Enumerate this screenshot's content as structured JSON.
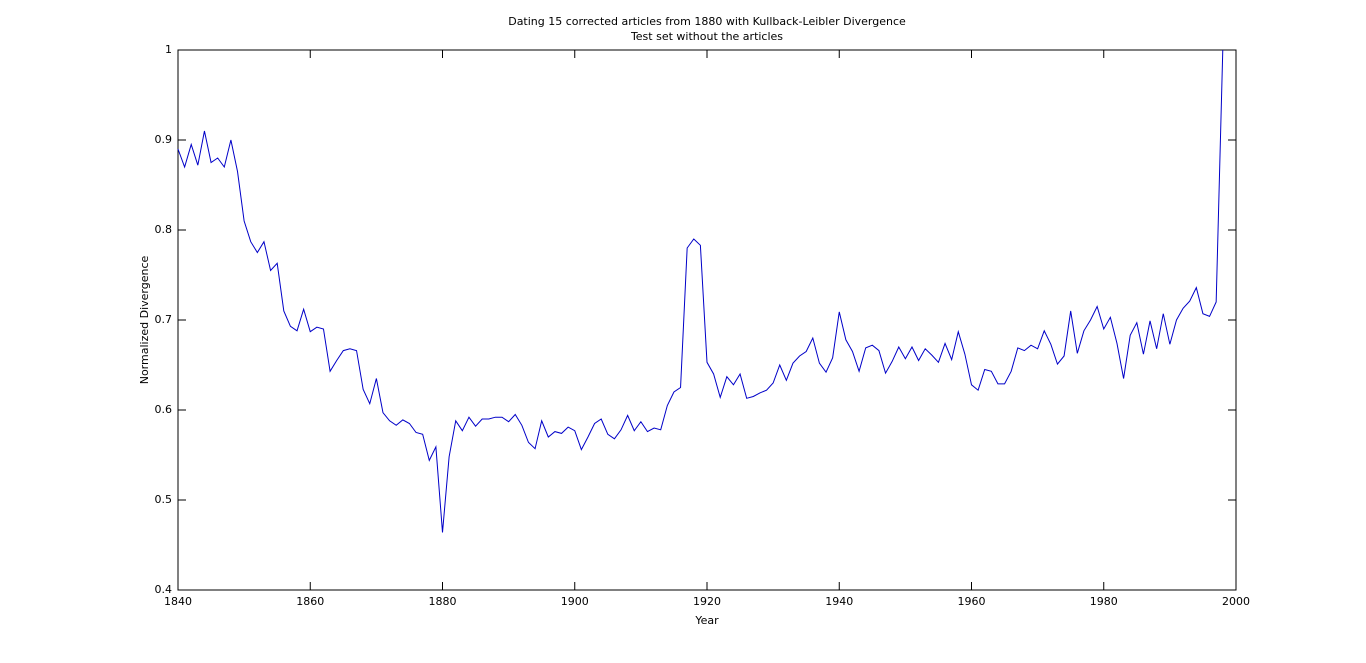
{
  "chart_data": {
    "type": "line",
    "title": "Dating 15 corrected articles from 1880 with Kullback-Leibler Divergence",
    "subtitle": "Test set without the articles",
    "x_label": "Year",
    "y_label": "Normalized Divergence",
    "x": [
      1840,
      1841,
      1842,
      1843,
      1844,
      1845,
      1846,
      1847,
      1848,
      1849,
      1850,
      1851,
      1852,
      1853,
      1854,
      1855,
      1856,
      1857,
      1858,
      1859,
      1860,
      1861,
      1862,
      1863,
      1864,
      1865,
      1866,
      1867,
      1868,
      1869,
      1870,
      1871,
      1872,
      1873,
      1874,
      1875,
      1876,
      1877,
      1878,
      1879,
      1880,
      1881,
      1882,
      1883,
      1884,
      1885,
      1886,
      1887,
      1888,
      1889,
      1890,
      1891,
      1892,
      1893,
      1894,
      1895,
      1896,
      1897,
      1898,
      1899,
      1900,
      1901,
      1902,
      1903,
      1904,
      1905,
      1906,
      1907,
      1908,
      1909,
      1910,
      1911,
      1912,
      1913,
      1914,
      1915,
      1916,
      1917,
      1918,
      1919,
      1920,
      1921,
      1922,
      1923,
      1924,
      1925,
      1926,
      1927,
      1928,
      1929,
      1930,
      1931,
      1932,
      1933,
      1934,
      1935,
      1936,
      1937,
      1938,
      1939,
      1940,
      1941,
      1942,
      1943,
      1944,
      1945,
      1946,
      1947,
      1948,
      1949,
      1950,
      1951,
      1952,
      1953,
      1954,
      1955,
      1956,
      1957,
      1958,
      1959,
      1960,
      1961,
      1962,
      1963,
      1964,
      1965,
      1966,
      1967,
      1968,
      1969,
      1970,
      1971,
      1972,
      1973,
      1974,
      1975,
      1976,
      1977,
      1978,
      1979,
      1980,
      1981,
      1982,
      1983,
      1984,
      1985,
      1986,
      1987,
      1988,
      1989,
      1990,
      1991,
      1992,
      1993,
      1994,
      1995,
      1996,
      1997,
      1998
    ],
    "series": [
      {
        "name": "Normalized Divergence",
        "color": "#0000c8",
        "values": [
          0.89,
          0.87,
          0.895,
          0.872,
          0.91,
          0.875,
          0.88,
          0.87,
          0.9,
          0.865,
          0.81,
          0.787,
          0.775,
          0.787,
          0.755,
          0.763,
          0.71,
          0.693,
          0.688,
          0.712,
          0.687,
          0.692,
          0.69,
          0.643,
          0.655,
          0.666,
          0.668,
          0.666,
          0.623,
          0.607,
          0.635,
          0.597,
          0.588,
          0.583,
          0.589,
          0.585,
          0.575,
          0.573,
          0.544,
          0.559,
          0.464,
          0.548,
          0.588,
          0.577,
          0.592,
          0.582,
          0.59,
          0.59,
          0.592,
          0.592,
          0.587,
          0.595,
          0.583,
          0.564,
          0.557,
          0.588,
          0.57,
          0.576,
          0.574,
          0.581,
          0.577,
          0.556,
          0.57,
          0.585,
          0.59,
          0.573,
          0.568,
          0.578,
          0.594,
          0.577,
          0.587,
          0.576,
          0.58,
          0.578,
          0.605,
          0.62,
          0.625,
          0.78,
          0.79,
          0.783,
          0.653,
          0.64,
          0.614,
          0.637,
          0.628,
          0.64,
          0.613,
          0.615,
          0.619,
          0.622,
          0.63,
          0.65,
          0.633,
          0.652,
          0.66,
          0.665,
          0.68,
          0.652,
          0.642,
          0.658,
          0.709,
          0.678,
          0.665,
          0.643,
          0.669,
          0.672,
          0.666,
          0.641,
          0.654,
          0.67,
          0.657,
          0.67,
          0.655,
          0.668,
          0.661,
          0.653,
          0.674,
          0.656,
          0.687,
          0.662,
          0.628,
          0.622,
          0.645,
          0.643,
          0.629,
          0.629,
          0.643,
          0.669,
          0.666,
          0.672,
          0.668,
          0.688,
          0.673,
          0.651,
          0.66,
          0.71,
          0.663,
          0.688,
          0.7,
          0.715,
          0.69,
          0.703,
          0.674,
          0.635,
          0.683,
          0.697,
          0.662,
          0.699,
          0.668,
          0.707,
          0.673,
          0.7,
          0.713,
          0.721,
          0.736,
          0.707,
          0.704,
          0.72,
          1.0
        ]
      }
    ],
    "xlim": [
      1840,
      2000
    ],
    "xticks": [
      1840,
      1860,
      1880,
      1900,
      1920,
      1940,
      1960,
      1980,
      2000
    ],
    "ylim": [
      0.4,
      1
    ],
    "yticks": [
      0.4,
      0.5,
      0.6,
      0.7,
      0.8,
      0.9,
      1
    ],
    "grid": false
  }
}
